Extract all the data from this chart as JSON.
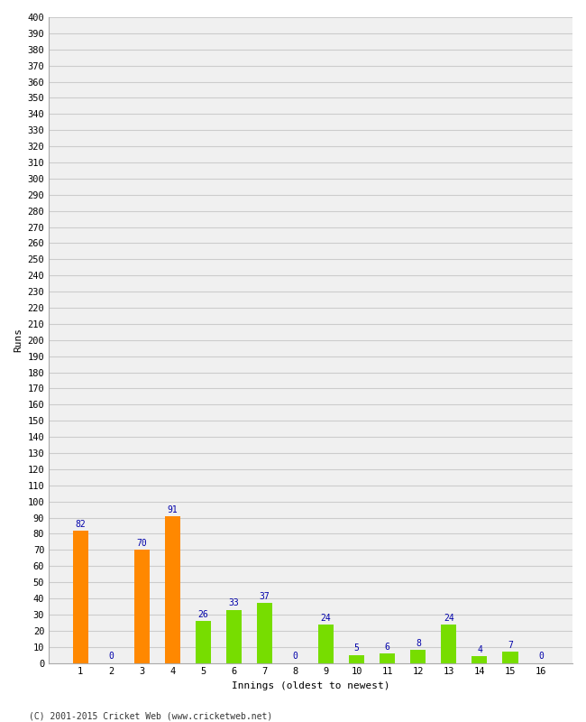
{
  "title": "",
  "xlabel": "Innings (oldest to newest)",
  "ylabel": "Runs",
  "categories": [
    1,
    2,
    3,
    4,
    5,
    6,
    7,
    8,
    9,
    10,
    11,
    12,
    13,
    14,
    15,
    16
  ],
  "values": [
    82,
    0,
    70,
    91,
    26,
    33,
    37,
    0,
    24,
    5,
    6,
    8,
    24,
    4,
    7,
    0
  ],
  "bar_colors": [
    "#ff8800",
    "#77dd00",
    "#ff8800",
    "#ff8800",
    "#77dd00",
    "#77dd00",
    "#77dd00",
    "#77dd00",
    "#77dd00",
    "#77dd00",
    "#77dd00",
    "#77dd00",
    "#77dd00",
    "#77dd00",
    "#77dd00",
    "#77dd00"
  ],
  "ylim": [
    0,
    400
  ],
  "yticks": [
    0,
    10,
    20,
    30,
    40,
    50,
    60,
    70,
    80,
    90,
    100,
    110,
    120,
    130,
    140,
    150,
    160,
    170,
    180,
    190,
    200,
    210,
    220,
    230,
    240,
    250,
    260,
    270,
    280,
    290,
    300,
    310,
    320,
    330,
    340,
    350,
    360,
    370,
    380,
    390,
    400
  ],
  "label_color": "#0000aa",
  "label_fontsize": 7,
  "axis_fontsize": 7.5,
  "footer": "(C) 2001-2015 Cricket Web (www.cricketweb.net)",
  "background_color": "#ffffff",
  "plot_bg_color": "#f0f0f0",
  "grid_color": "#cccccc",
  "bar_width": 0.5
}
